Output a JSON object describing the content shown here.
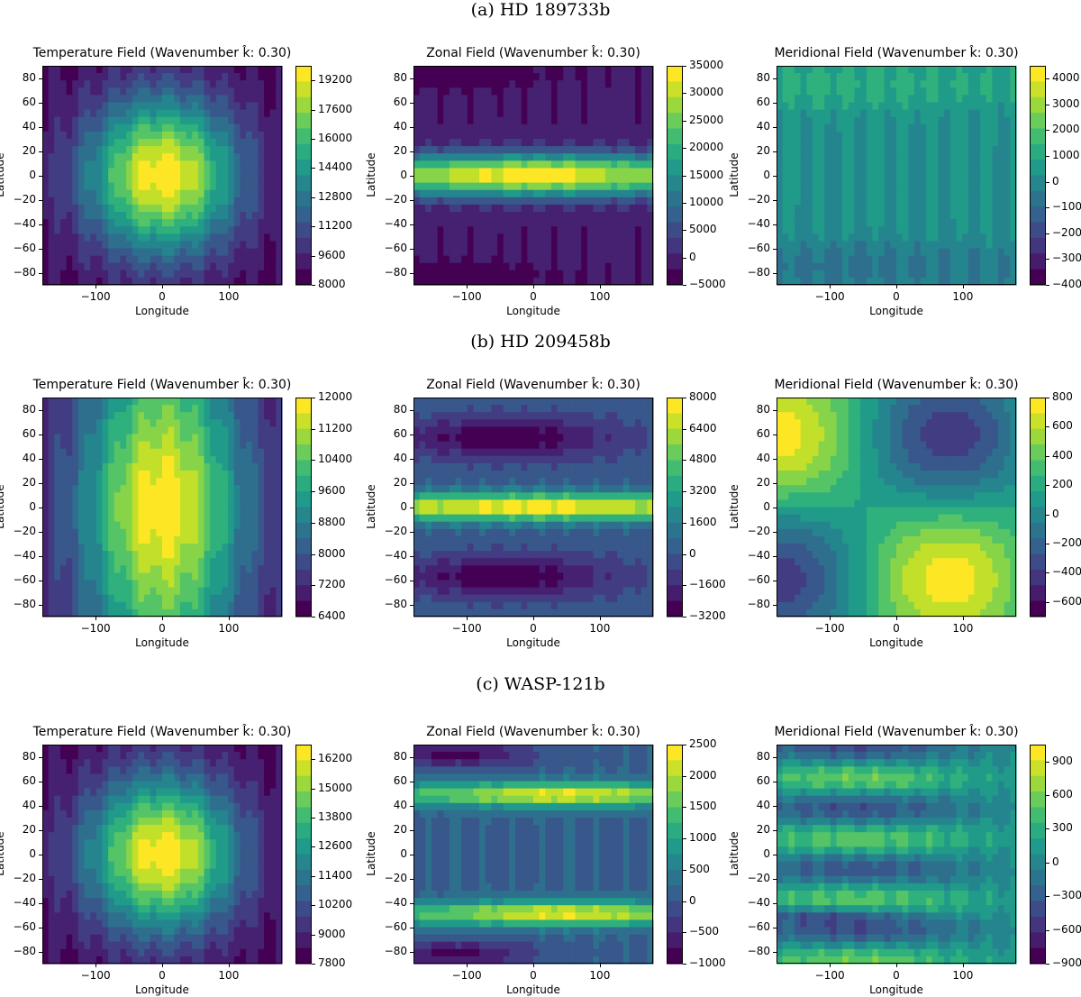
{
  "section_titles": [
    "(a) HD 189733b",
    "(b) HD 209458b",
    "(c) WASP-121b"
  ],
  "chart_data": [
    {
      "type": "heatmap",
      "row": 0,
      "col": 0,
      "field": "temperature",
      "title": "Temperature Field (Wavenumber k̂: 0.30)",
      "xlabel": "Longitude",
      "ylabel": "Latitude",
      "xlim": [
        -180,
        180
      ],
      "ylim": [
        -90,
        90
      ],
      "xticks": [
        "−100",
        "0",
        "100"
      ],
      "yticks": [
        "80",
        "60",
        "40",
        "20",
        "0",
        "−20",
        "−40",
        "−60",
        "−80"
      ],
      "colorbar_range": [
        8000,
        20000
      ],
      "colorbar_ticks": [
        "19200",
        "17600",
        "16000",
        "14400",
        "12800",
        "11200",
        "9600",
        "8000"
      ],
      "colorbar_values": [
        19200,
        17600,
        16000,
        14400,
        12800,
        11200,
        9600,
        8000
      ],
      "pattern": "hot spot centred near 0° longitude, 0° latitude"
    },
    {
      "type": "heatmap",
      "row": 0,
      "col": 1,
      "field": "zonal",
      "title": "Zonal Field (Wavenumber k̂: 0.30)",
      "xlabel": "Longitude",
      "ylabel": "Latitude",
      "xlim": [
        -180,
        180
      ],
      "ylim": [
        -90,
        90
      ],
      "xticks": [
        "−100",
        "0",
        "100"
      ],
      "yticks": [
        "80",
        "60",
        "40",
        "20",
        "0",
        "−20",
        "−40",
        "−60",
        "−80"
      ],
      "colorbar_range": [
        -5000,
        35000
      ],
      "colorbar_ticks": [
        "35000",
        "30000",
        "25000",
        "20000",
        "15000",
        "10000",
        "5000",
        "0",
        "−5000"
      ],
      "colorbar_values": [
        35000,
        30000,
        25000,
        20000,
        15000,
        10000,
        5000,
        0,
        -5000
      ],
      "pattern": "equatorial jet peaking near 0° latitude"
    },
    {
      "type": "heatmap",
      "row": 0,
      "col": 2,
      "field": "meridional",
      "title": "Meridional Field (Wavenumber k̂: 0.30)",
      "xlabel": "Longitude",
      "ylabel": "Latitude",
      "xlim": [
        -180,
        180
      ],
      "ylim": [
        -90,
        90
      ],
      "xticks": [
        "−100",
        "0",
        "100"
      ],
      "yticks": [
        "80",
        "60",
        "40",
        "20",
        "0",
        "−20",
        "−40",
        "−60",
        "−80"
      ],
      "colorbar_range": [
        -4000,
        4500
      ],
      "colorbar_ticks": [
        "4000",
        "3000",
        "2000",
        "1000",
        "0",
        "−1000",
        "−2000",
        "−3000",
        "−4000"
      ],
      "colorbar_values": [
        4000,
        3000,
        2000,
        1000,
        0,
        -1000,
        -2000,
        -3000,
        -4000
      ],
      "pattern": "positive at high northern latitudes, negative at high southern latitudes"
    },
    {
      "type": "heatmap",
      "row": 1,
      "col": 0,
      "field": "temperature",
      "title": "Temperature Field (Wavenumber k̂: 0.30)",
      "xlabel": "Longitude",
      "ylabel": "Latitude",
      "xlim": [
        -180,
        180
      ],
      "ylim": [
        -90,
        90
      ],
      "xticks": [
        "−100",
        "0",
        "100"
      ],
      "yticks": [
        "80",
        "60",
        "40",
        "20",
        "0",
        "−20",
        "−40",
        "−60",
        "−80"
      ],
      "colorbar_range": [
        6400,
        12000
      ],
      "colorbar_ticks": [
        "12000",
        "11200",
        "10400",
        "9600",
        "8800",
        "8000",
        "7200",
        "6400"
      ],
      "colorbar_values": [
        12000,
        11200,
        10400,
        9600,
        8800,
        8000,
        7200,
        6400
      ],
      "pattern": "hot region near 0° longitude, elongated in latitude"
    },
    {
      "type": "heatmap",
      "row": 1,
      "col": 1,
      "field": "zonal",
      "title": "Zonal Field (Wavenumber k̂: 0.30)",
      "xlabel": "Longitude",
      "ylabel": "Latitude",
      "xlim": [
        -180,
        180
      ],
      "ylim": [
        -90,
        90
      ],
      "xticks": [
        "−100",
        "0",
        "100"
      ],
      "yticks": [
        "80",
        "60",
        "40",
        "20",
        "0",
        "−20",
        "−40",
        "−60",
        "−80"
      ],
      "colorbar_range": [
        -3200,
        8000
      ],
      "colorbar_ticks": [
        "8000",
        "6400",
        "4800",
        "3200",
        "1600",
        "0",
        "−1600",
        "−3200"
      ],
      "colorbar_values": [
        8000,
        6400,
        4800,
        3200,
        1600,
        0,
        -1600,
        -3200
      ],
      "pattern": "equatorial jet with negative bands near ±60° latitude"
    },
    {
      "type": "heatmap",
      "row": 1,
      "col": 2,
      "field": "meridional",
      "title": "Meridional Field (Wavenumber k̂: 0.30)",
      "xlabel": "Longitude",
      "ylabel": "Latitude",
      "xlim": [
        -180,
        180
      ],
      "ylim": [
        -90,
        90
      ],
      "xticks": [
        "−100",
        "0",
        "100"
      ],
      "yticks": [
        "80",
        "60",
        "40",
        "20",
        "0",
        "−20",
        "−40",
        "−60",
        "−80"
      ],
      "colorbar_range": [
        -700,
        800
      ],
      "colorbar_ticks": [
        "800",
        "600",
        "400",
        "200",
        "0",
        "−200",
        "−400",
        "−600"
      ],
      "colorbar_values": [
        800,
        600,
        400,
        200,
        0,
        -200,
        -400,
        -600
      ],
      "pattern": "maximum near (−180°, 60°), minimum near (−180°, −60°)"
    },
    {
      "type": "heatmap",
      "row": 2,
      "col": 0,
      "field": "temperature",
      "title": "Temperature Field (Wavenumber k̂: 0.30)",
      "xlabel": "Longitude",
      "ylabel": "Latitude",
      "xlim": [
        -180,
        180
      ],
      "ylim": [
        -90,
        90
      ],
      "xticks": [
        "−100",
        "0",
        "100"
      ],
      "yticks": [
        "80",
        "60",
        "40",
        "20",
        "0",
        "−20",
        "−40",
        "−60",
        "−80"
      ],
      "colorbar_range": [
        7800,
        16800
      ],
      "colorbar_ticks": [
        "16200",
        "15000",
        "13800",
        "12600",
        "11400",
        "10200",
        "9000",
        "7800"
      ],
      "colorbar_values": [
        16200,
        15000,
        13800,
        12600,
        11400,
        10200,
        9000,
        7800
      ],
      "pattern": "hot spot centred near 0° longitude, 0° latitude"
    },
    {
      "type": "heatmap",
      "row": 2,
      "col": 1,
      "field": "zonal",
      "title": "Zonal Field (Wavenumber k̂: 0.30)",
      "xlabel": "Longitude",
      "ylabel": "Latitude",
      "xlim": [
        -180,
        180
      ],
      "ylim": [
        -90,
        90
      ],
      "xticks": [
        "−100",
        "0",
        "100"
      ],
      "yticks": [
        "80",
        "60",
        "40",
        "20",
        "0",
        "−20",
        "−40",
        "−60",
        "−80"
      ],
      "colorbar_range": [
        -1000,
        2500
      ],
      "colorbar_ticks": [
        "2500",
        "2000",
        "1500",
        "1000",
        "500",
        "0",
        "−500",
        "−1000"
      ],
      "colorbar_values": [
        2500,
        2000,
        1500,
        1000,
        500,
        0,
        -500,
        -1000
      ],
      "pattern": "two jets near ±50° latitude"
    },
    {
      "type": "heatmap",
      "row": 2,
      "col": 2,
      "field": "meridional",
      "title": "Meridional Field (Wavenumber k̂: 0.30)",
      "xlabel": "Longitude",
      "ylabel": "Latitude",
      "xlim": [
        -180,
        180
      ],
      "ylim": [
        -90,
        90
      ],
      "xticks": [
        "−100",
        "0",
        "100"
      ],
      "yticks": [
        "80",
        "60",
        "40",
        "20",
        "0",
        "−20",
        "−40",
        "−60",
        "−80"
      ],
      "colorbar_range": [
        -900,
        1050
      ],
      "colorbar_ticks": [
        "900",
        "600",
        "300",
        "0",
        "−300",
        "−600",
        "−900"
      ],
      "colorbar_values": [
        900,
        600,
        300,
        0,
        -300,
        -600,
        -900
      ],
      "pattern": "alternating latitudinal bands"
    }
  ]
}
